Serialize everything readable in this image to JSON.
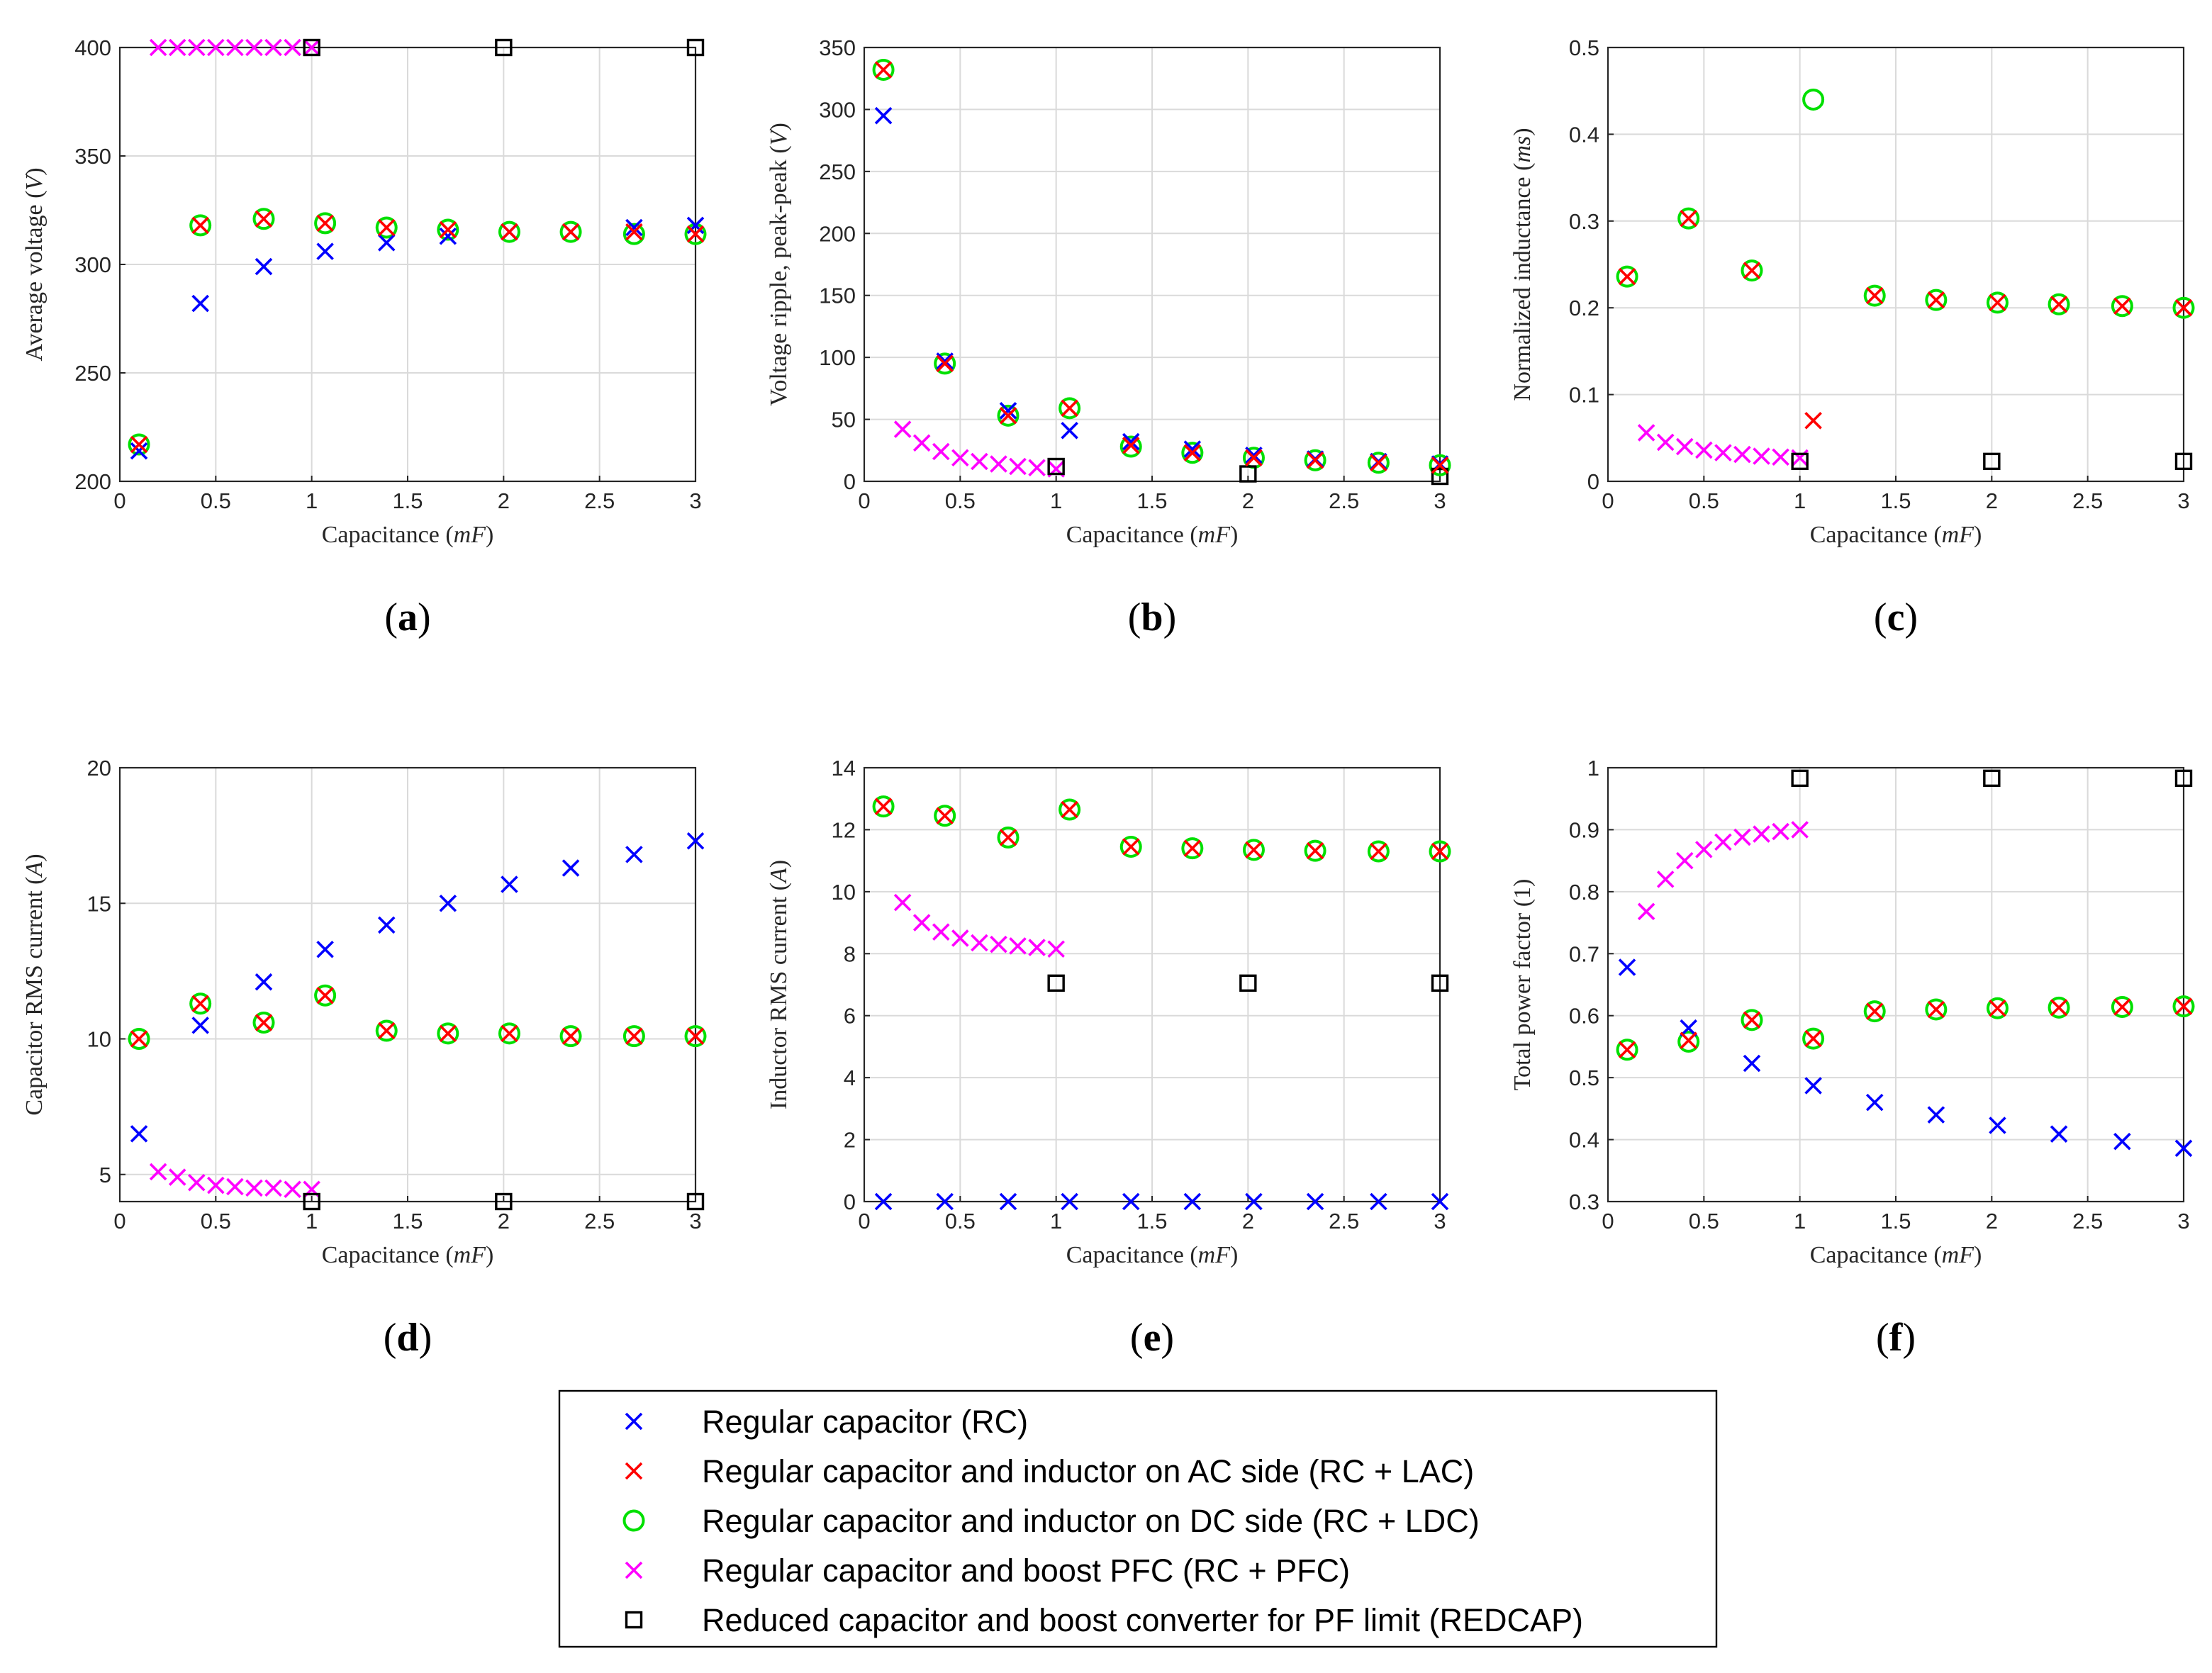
{
  "legend": {
    "items": [
      {
        "key": "RC",
        "label": "Regular capacitor (RC)",
        "color": "#0000ff",
        "marker": "x-mark"
      },
      {
        "key": "LAC",
        "label": "Regular capacitor and inductor on AC side (RC + LAC)",
        "color": "#ff0000",
        "marker": "x-mark"
      },
      {
        "key": "LDC",
        "label": "Regular capacitor and inductor on DC side (RC + LDC)",
        "color": "#00e000",
        "marker": "circle"
      },
      {
        "key": "PFC",
        "label": "Regular capacitor and boost PFC (RC + PFC)",
        "color": "#ff00ff",
        "marker": "x-mark"
      },
      {
        "key": "REDCAP",
        "label": "Reduced capacitor and boost converter for PF limit (REDCAP)",
        "color": "#000000",
        "marker": "square"
      }
    ]
  },
  "chart_data": [
    {
      "type": "scatter",
      "panel": "(a)",
      "title": "",
      "xlabel": "Capacitance",
      "xunit": "mF",
      "ylabel": "Average voltage",
      "yunit": "V",
      "xlim": [
        0,
        3
      ],
      "ylim": [
        200,
        400
      ],
      "grid": true,
      "xticks": [
        "0",
        "0.5",
        "1",
        "1.5",
        "2",
        "2.5",
        "3"
      ],
      "yticks": [
        "200",
        "250",
        "300",
        "350",
        "400"
      ],
      "series": [
        {
          "key": "RC",
          "x": [
            0.1,
            0.42,
            0.75,
            1.07,
            1.39,
            1.71,
            2.03,
            2.35,
            2.68,
            3.0
          ],
          "y": [
            214,
            282,
            299,
            306,
            310,
            313,
            315,
            315,
            317,
            318
          ]
        },
        {
          "key": "LAC",
          "x": [
            0.1,
            0.42,
            0.75,
            1.07,
            1.39,
            1.71,
            2.03,
            2.35,
            2.68,
            3.0
          ],
          "y": [
            217,
            318,
            321,
            319,
            317,
            316,
            315,
            315,
            315,
            314
          ]
        },
        {
          "key": "LDC",
          "x": [
            0.1,
            0.42,
            0.75,
            1.07,
            1.39,
            1.71,
            2.03,
            2.35,
            2.68,
            3.0
          ],
          "y": [
            217,
            318,
            321,
            319,
            317,
            316,
            315,
            315,
            314,
            314
          ]
        },
        {
          "key": "PFC",
          "x": [
            0.2,
            0.3,
            0.4,
            0.5,
            0.6,
            0.7,
            0.8,
            0.9,
            1.0
          ],
          "y": [
            400,
            400,
            400,
            400,
            400,
            400,
            400,
            400,
            400
          ]
        },
        {
          "key": "REDCAP",
          "x": [
            1,
            2,
            3
          ],
          "y": [
            400,
            400,
            400
          ]
        }
      ]
    },
    {
      "type": "scatter",
      "panel": "(b)",
      "title": "",
      "xlabel": "Capacitance",
      "xunit": "mF",
      "ylabel": "Voltage ripple, peak-peak",
      "yunit": "V",
      "xlim": [
        0,
        3
      ],
      "ylim": [
        0,
        350
      ],
      "grid": true,
      "xticks": [
        "0",
        "0.5",
        "1",
        "1.5",
        "2",
        "2.5",
        "3"
      ],
      "yticks": [
        "0",
        "50",
        "100",
        "150",
        "200",
        "250",
        "300",
        "350"
      ],
      "series": [
        {
          "key": "RC",
          "x": [
            0.1,
            0.42,
            0.75,
            1.07,
            1.39,
            1.71,
            2.03,
            2.35,
            2.68,
            3.0
          ],
          "y": [
            295,
            97,
            57,
            41,
            32,
            26,
            21,
            18,
            16,
            14
          ]
        },
        {
          "key": "LAC",
          "x": [
            0.1,
            0.42,
            0.75,
            1.07,
            1.39,
            1.71,
            2.03,
            2.35,
            2.68,
            3.0
          ],
          "y": [
            332,
            95,
            53,
            59,
            29,
            23,
            19,
            17,
            15,
            13
          ]
        },
        {
          "key": "LDC",
          "x": [
            0.1,
            0.42,
            0.75,
            1.07,
            1.39,
            1.71,
            2.03,
            2.35,
            2.68,
            3.0
          ],
          "y": [
            332,
            95,
            53,
            59,
            28,
            23,
            19,
            17,
            15,
            13
          ]
        },
        {
          "key": "PFC",
          "x": [
            0.2,
            0.3,
            0.4,
            0.5,
            0.6,
            0.7,
            0.8,
            0.9,
            1.0
          ],
          "y": [
            42,
            31,
            24,
            19,
            16,
            14,
            12,
            11,
            10
          ]
        },
        {
          "key": "REDCAP",
          "x": [
            1,
            2,
            3
          ],
          "y": [
            12,
            6,
            4
          ]
        }
      ]
    },
    {
      "type": "scatter",
      "panel": "(c)",
      "title": "",
      "xlabel": "Capacitance",
      "xunit": "mF",
      "ylabel": "Normalized inductance",
      "yunit": "ms",
      "xlim": [
        0,
        3
      ],
      "ylim": [
        0,
        0.5
      ],
      "grid": true,
      "xticks": [
        "0",
        "0.5",
        "1",
        "1.5",
        "2",
        "2.5",
        "3"
      ],
      "yticks": [
        "0",
        "0.1",
        "0.2",
        "0.3",
        "0.4",
        "0.5"
      ],
      "series": [
        {
          "key": "LAC",
          "x": [
            0.1,
            0.42,
            0.75,
            1.07,
            1.39,
            1.71,
            2.03,
            2.35,
            2.68,
            3.0
          ],
          "y": [
            0.236,
            0.303,
            0.243,
            0.07,
            0.214,
            0.209,
            0.206,
            0.204,
            0.202,
            0.2
          ]
        },
        {
          "key": "LDC",
          "x": [
            0.1,
            0.42,
            0.75,
            1.07,
            1.39,
            1.71,
            2.03,
            2.35,
            2.68,
            3.0
          ],
          "y": [
            0.236,
            0.303,
            0.243,
            0.44,
            0.214,
            0.209,
            0.206,
            0.204,
            0.202,
            0.2
          ]
        },
        {
          "key": "PFC",
          "x": [
            0.2,
            0.3,
            0.4,
            0.5,
            0.6,
            0.7,
            0.8,
            0.9,
            1.0
          ],
          "y": [
            0.056,
            0.045,
            0.04,
            0.036,
            0.033,
            0.031,
            0.029,
            0.028,
            0.027
          ]
        },
        {
          "key": "REDCAP",
          "x": [
            1,
            2,
            3
          ],
          "y": [
            0.023,
            0.023,
            0.023
          ]
        }
      ]
    },
    {
      "type": "scatter",
      "panel": "(d)",
      "title": "",
      "xlabel": "Capacitance",
      "xunit": "mF",
      "ylabel": "Capacitor RMS current",
      "yunit": "A",
      "xlim": [
        0,
        3
      ],
      "ylim": [
        4,
        20
      ],
      "grid": true,
      "xticks": [
        "0",
        "0.5",
        "1",
        "1.5",
        "2",
        "2.5",
        "3"
      ],
      "yticks": [
        "5",
        "10",
        "15",
        "20"
      ],
      "ytickvals": [
        5,
        10,
        15,
        20
      ],
      "series": [
        {
          "key": "RC",
          "x": [
            0.1,
            0.42,
            0.75,
            1.07,
            1.39,
            1.71,
            2.03,
            2.35,
            2.68,
            3.0
          ],
          "y": [
            6.5,
            10.5,
            12.1,
            13.3,
            14.2,
            15.0,
            15.7,
            16.3,
            16.8,
            17.3
          ]
        },
        {
          "key": "LAC",
          "x": [
            0.1,
            0.42,
            0.75,
            1.07,
            1.39,
            1.71,
            2.03,
            2.35,
            2.68,
            3.0
          ],
          "y": [
            10.0,
            11.3,
            10.6,
            11.6,
            10.3,
            10.2,
            10.2,
            10.1,
            10.1,
            10.1
          ]
        },
        {
          "key": "LDC",
          "x": [
            0.1,
            0.42,
            0.75,
            1.07,
            1.39,
            1.71,
            2.03,
            2.35,
            2.68,
            3.0
          ],
          "y": [
            10.0,
            11.3,
            10.6,
            11.6,
            10.3,
            10.2,
            10.2,
            10.1,
            10.1,
            10.1
          ]
        },
        {
          "key": "PFC",
          "x": [
            0.2,
            0.3,
            0.4,
            0.5,
            0.6,
            0.7,
            0.8,
            0.9,
            1.0
          ],
          "y": [
            5.1,
            4.9,
            4.7,
            4.6,
            4.55,
            4.5,
            4.5,
            4.45,
            4.45
          ]
        },
        {
          "key": "REDCAP",
          "x": [
            1,
            2,
            3
          ],
          "y": [
            4.0,
            4.0,
            4.0
          ]
        }
      ]
    },
    {
      "type": "scatter",
      "panel": "(e)",
      "title": "",
      "xlabel": "Capacitance",
      "xunit": "mF",
      "ylabel": "Inductor RMS current",
      "yunit": "A",
      "xlim": [
        0,
        3
      ],
      "ylim": [
        0,
        14
      ],
      "grid": true,
      "xticks": [
        "0",
        "0.5",
        "1",
        "1.5",
        "2",
        "2.5",
        "3"
      ],
      "yticks": [
        "0",
        "2",
        "4",
        "6",
        "8",
        "10",
        "12",
        "14"
      ],
      "series": [
        {
          "key": "RC",
          "x": [
            0.1,
            0.42,
            0.75,
            1.07,
            1.39,
            1.71,
            2.03,
            2.35,
            2.68,
            3.0
          ],
          "y": [
            0,
            0,
            0,
            0,
            0,
            0,
            0,
            0,
            0,
            0
          ]
        },
        {
          "key": "LAC",
          "x": [
            0.1,
            0.42,
            0.75,
            1.07,
            1.39,
            1.71,
            2.03,
            2.35,
            2.68,
            3.0
          ],
          "y": [
            12.75,
            12.45,
            11.75,
            12.65,
            11.45,
            11.4,
            11.35,
            11.32,
            11.3,
            11.3
          ]
        },
        {
          "key": "LDC",
          "x": [
            0.1,
            0.42,
            0.75,
            1.07,
            1.39,
            1.71,
            2.03,
            2.35,
            2.68,
            3.0
          ],
          "y": [
            12.75,
            12.45,
            11.75,
            12.65,
            11.45,
            11.4,
            11.35,
            11.32,
            11.3,
            11.3
          ]
        },
        {
          "key": "PFC",
          "x": [
            0.2,
            0.3,
            0.4,
            0.5,
            0.6,
            0.7,
            0.8,
            0.9,
            1.0
          ],
          "y": [
            9.65,
            9.0,
            8.7,
            8.5,
            8.35,
            8.3,
            8.25,
            8.2,
            8.15
          ]
        },
        {
          "key": "REDCAP",
          "x": [
            1,
            2,
            3
          ],
          "y": [
            7.05,
            7.05,
            7.05
          ]
        }
      ]
    },
    {
      "type": "scatter",
      "panel": "(f)",
      "title": "",
      "xlabel": "Capacitance",
      "xunit": "mF",
      "ylabel": "Total power factor",
      "yunit": "1",
      "xlim": [
        0,
        3
      ],
      "ylim": [
        0.3,
        1
      ],
      "grid": true,
      "xticks": [
        "0",
        "0.5",
        "1",
        "1.5",
        "2",
        "2.5",
        "3"
      ],
      "yticks": [
        "0.3",
        "0.4",
        "0.5",
        "0.6",
        "0.7",
        "0.8",
        "0.9",
        "1"
      ],
      "series": [
        {
          "key": "RC",
          "x": [
            0.1,
            0.42,
            0.75,
            1.07,
            1.39,
            1.71,
            2.03,
            2.35,
            2.68,
            3.0
          ],
          "y": [
            0.678,
            0.58,
            0.523,
            0.487,
            0.46,
            0.44,
            0.423,
            0.409,
            0.397,
            0.386
          ]
        },
        {
          "key": "LAC",
          "x": [
            0.1,
            0.42,
            0.75,
            1.07,
            1.39,
            1.71,
            2.03,
            2.35,
            2.68,
            3.0
          ],
          "y": [
            0.545,
            0.56,
            0.593,
            0.563,
            0.607,
            0.61,
            0.612,
            0.613,
            0.614,
            0.615
          ]
        },
        {
          "key": "LDC",
          "x": [
            0.1,
            0.42,
            0.75,
            1.07,
            1.39,
            1.71,
            2.03,
            2.35,
            2.68,
            3.0
          ],
          "y": [
            0.545,
            0.558,
            0.593,
            0.563,
            0.607,
            0.61,
            0.612,
            0.613,
            0.614,
            0.615
          ]
        },
        {
          "key": "PFC",
          "x": [
            0.2,
            0.3,
            0.4,
            0.5,
            0.6,
            0.7,
            0.8,
            0.9,
            1.0
          ],
          "y": [
            0.768,
            0.82,
            0.85,
            0.868,
            0.88,
            0.888,
            0.893,
            0.897,
            0.9
          ]
        },
        {
          "key": "REDCAP",
          "x": [
            1,
            2,
            3
          ],
          "y": [
            0.983,
            0.983,
            0.983
          ]
        }
      ]
    }
  ]
}
